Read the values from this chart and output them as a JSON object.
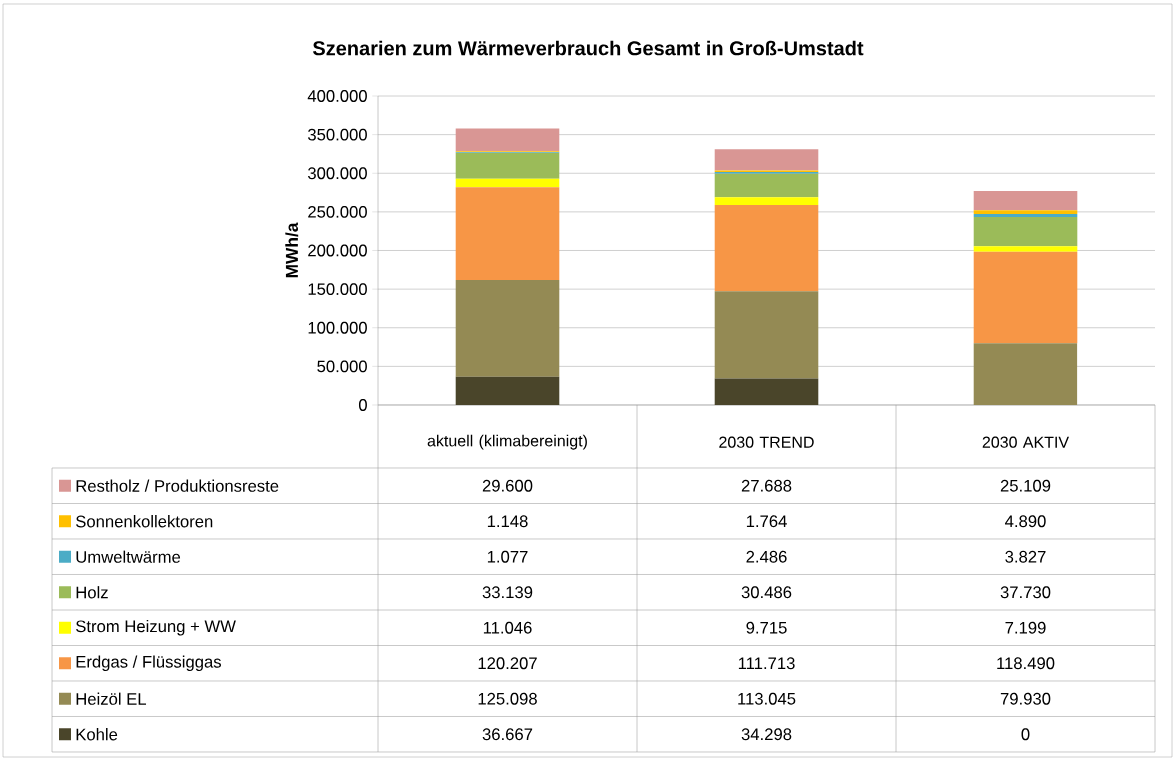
{
  "chart_data": {
    "type": "bar",
    "stacked": true,
    "title": "Szenarien zum Wärmeverbrauch Gesamt in Groß-Umstadt",
    "ylabel": "MWh/a",
    "categories": [
      "aktuell (klimabereinigt)",
      "2030 TREND",
      "2030 AKTIV"
    ],
    "ylim": [
      0,
      400000
    ],
    "yticks": [
      0,
      {
        "value": 50000,
        "label": "50.000"
      },
      {
        "value": 100000,
        "label": "100.000"
      },
      {
        "value": 150000,
        "label": "150.000"
      },
      {
        "value": 200000,
        "label": "200.000"
      },
      {
        "value": 250000,
        "label": "250.000"
      },
      {
        "value": 300000,
        "label": "300.000"
      },
      {
        "value": 350000,
        "label": "350.000"
      },
      {
        "value": 400000,
        "label": "400.000"
      }
    ],
    "grid": "y",
    "legend": "bottom",
    "series": [
      {
        "name": "Kohle",
        "color": "#4a452a",
        "values": [
          36667,
          34298,
          0
        ],
        "value_labels": [
          "36.667",
          "34.298",
          "0"
        ]
      },
      {
        "name": "Heizöl EL",
        "color": "#948a54",
        "values": [
          125098,
          113045,
          79930
        ],
        "value_labels": [
          "125.098",
          "113.045",
          "79.930"
        ]
      },
      {
        "name": "Erdgas / Flüssiggas",
        "color": "#f79646",
        "values": [
          120207,
          111713,
          118490
        ],
        "value_labels": [
          "120.207",
          "111.713",
          "118.490"
        ]
      },
      {
        "name": "Strom Heizung + WW",
        "color": "#ffff00",
        "values": [
          11046,
          9715,
          7199
        ],
        "value_labels": [
          "11.046",
          "9.715",
          "7.199"
        ]
      },
      {
        "name": "Holz",
        "color": "#9bbb59",
        "values": [
          33139,
          30486,
          37730
        ],
        "value_labels": [
          "33.139",
          "30.486",
          "37.730"
        ]
      },
      {
        "name": "Umweltwärme",
        "color": "#4bacc6",
        "values": [
          1077,
          2486,
          3827
        ],
        "value_labels": [
          "1.077",
          "2.486",
          "3.827"
        ]
      },
      {
        "name": "Sonnenkollektoren",
        "color": "#ffc000",
        "values": [
          1148,
          1764,
          4890
        ],
        "value_labels": [
          "1.148",
          "1.764",
          "4.890"
        ]
      },
      {
        "name": "Restholz / Produktionsreste",
        "color": "#d99694",
        "values": [
          29600,
          27688,
          25109
        ],
        "value_labels": [
          "29.600",
          "27.688",
          "25.109"
        ]
      }
    ]
  }
}
